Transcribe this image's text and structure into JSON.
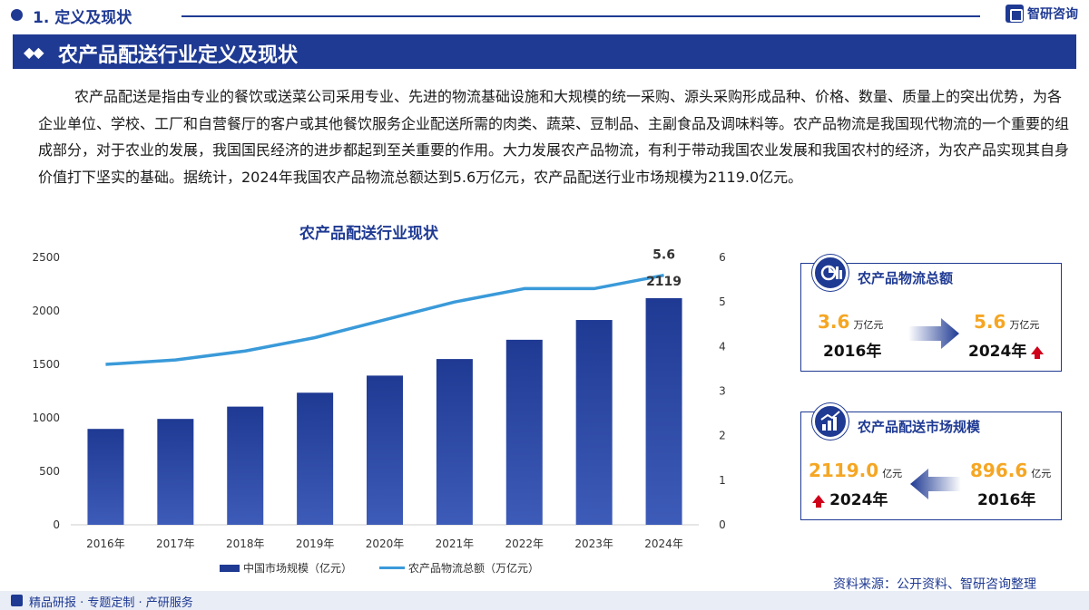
{
  "header": {
    "section": "1. 定义及现状",
    "logo": "智研咨询"
  },
  "banner": {
    "title": "农产品配送行业定义及现状"
  },
  "paragraph": "农产品配送是指由专业的餐饮或送菜公司采用专业、先进的物流基础设施和大规模的统一采购、源头采购形成品种、价格、数量、质量上的突出优势，为各企业单位、学校、工厂和自营餐厅的客户或其他餐饮服务企业配送所需的肉类、蔬菜、豆制品、主副食品及调味料等。农产品物流是我国现代物流的一个重要的组成部分，对于农业的发展，我国国民经济的进步都起到至关重要的作用。大力发展农产品物流，有利于带动我国农业发展和我国农村的经济，为农产品实现其自身价值打下坚实的基础。据统计，2024年我国农产品物流总额达到5.6万亿元，农产品配送行业市场规模为2119.0亿元。",
  "chart_data": {
    "type": "bar",
    "title": "农产品配送行业现状",
    "categories": [
      "2016年",
      "2017年",
      "2018年",
      "2019年",
      "2020年",
      "2021年",
      "2022年",
      "2023年",
      "2024年"
    ],
    "series": [
      {
        "name": "中国市场规模（亿元）",
        "type": "bar",
        "axis": "left",
        "color": "#1f3a93",
        "values": [
          896.6,
          990,
          1105,
          1235,
          1395,
          1550,
          1730,
          1915,
          2119
        ]
      },
      {
        "name": "农产品物流总额（万亿元）",
        "type": "line",
        "axis": "right",
        "color": "#3a9ad9",
        "values": [
          3.6,
          3.7,
          3.9,
          4.2,
          4.6,
          5.0,
          5.3,
          5.3,
          5.6
        ]
      }
    ],
    "ylim_left": [
      0,
      2500
    ],
    "yticks_left": [
      "0",
      "500",
      "1000",
      "1500",
      "2000",
      "2500"
    ],
    "ylim_right": [
      0,
      6
    ],
    "yticks_right": [
      "0",
      "1",
      "2",
      "3",
      "4",
      "5",
      "6"
    ],
    "annotations": {
      "bar_last": "2119",
      "line_last": "5.6"
    },
    "grid": false,
    "legend_position": "bottom"
  },
  "card_logistics": {
    "title": "农产品物流总额",
    "from_value": "3.6",
    "from_unit": "万亿元",
    "from_year": "2016年",
    "to_value": "5.6",
    "to_unit": "万亿元",
    "to_year": "2024年"
  },
  "card_market": {
    "title": "农产品配送市场规模",
    "to_value": "2119.0",
    "to_unit": "亿元",
    "to_year": "2024年",
    "from_value": "896.6",
    "from_unit": "亿元",
    "from_year": "2016年"
  },
  "source": "资料来源：公开资料、智研咨询整理",
  "footer": "精品研报 · 专题定制 · 产研服务"
}
